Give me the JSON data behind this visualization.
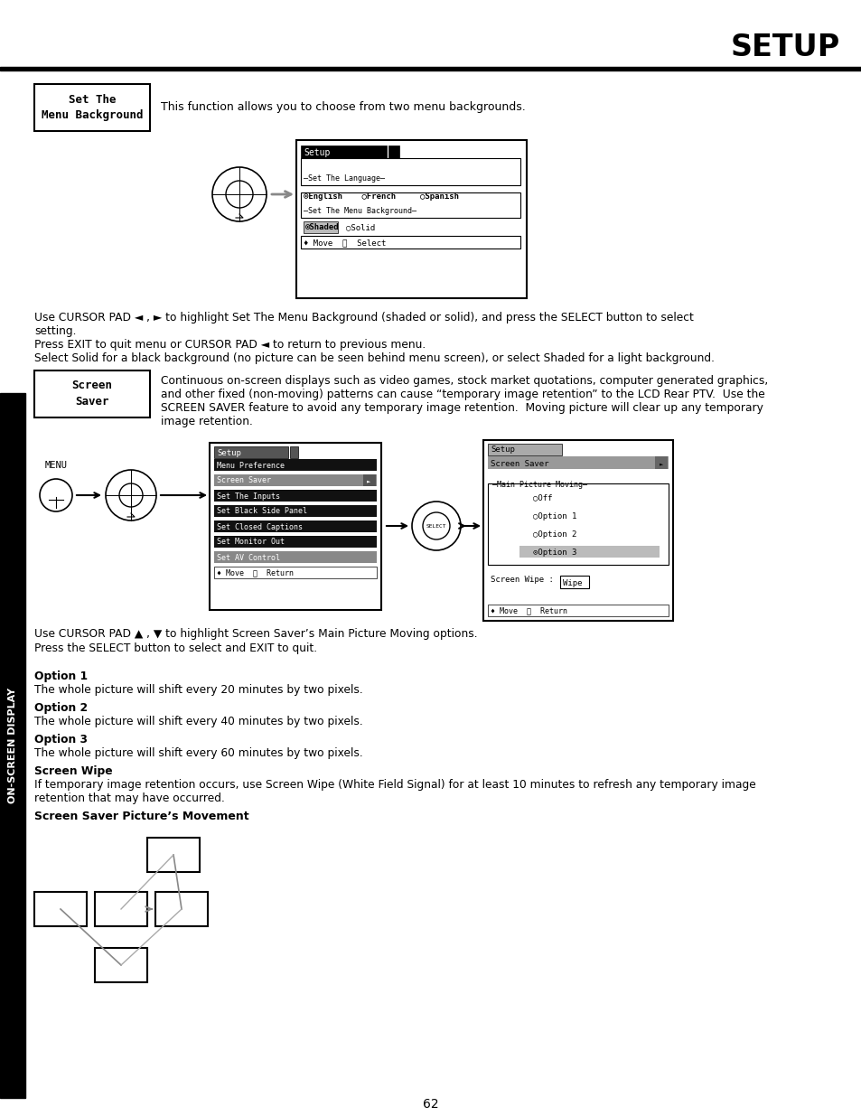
{
  "title": "SETUP",
  "page_number": "62",
  "bg_color": "#ffffff",
  "sidebar_text": "ON-SCREEN DISPLAY",
  "section1_label": "Set The\nMenu Background",
  "section1_desc": "This function allows you to choose from two menu backgrounds.",
  "section1_body": [
    "Use CURSOR PAD ◄ , ► to highlight Set The Menu Background (shaded or solid), and press the SELECT button to select",
    "setting.",
    "Press EXIT to quit menu or CURSOR PAD ◄ to return to previous menu.",
    "Select Solid for a black background (no picture can be seen behind menu screen), or select Shaded for a light background."
  ],
  "section2_label": "Screen\nSaver",
  "section2_desc_lines": [
    "Continuous on-screen displays such as video games, stock market quotations, computer generated graphics,",
    "and other fixed (non-moving) patterns can cause “temporary image retention” to the LCD Rear PTV.  Use the",
    "SCREEN SAVER feature to avoid any temporary image retention.  Moving picture will clear up any temporary",
    "image retention."
  ],
  "section2_nav_lines": [
    "Use CURSOR PAD ▲ , ▼ to highlight Screen Saver’s Main Picture Moving options.",
    "Press the SELECT button to select and EXIT to quit."
  ],
  "option1_title": "Option 1",
  "option1_body": "The whole picture will shift every 20 minutes by two pixels.",
  "option2_title": "Option 2",
  "option2_body": "The whole picture will shift every 40 minutes by two pixels.",
  "option3_title": "Option 3",
  "option3_body": "The whole picture will shift every 60 minutes by two pixels.",
  "screen_wipe_title": "Screen Wipe",
  "screen_wipe_body": "If temporary image retention occurs, use Screen Wipe (White Field Signal) for at least 10 minutes to refresh any temporary image",
  "screen_wipe_body2": "retention that may have occurred.",
  "screen_saver_picture_title": "Screen Saver Picture’s Movement"
}
